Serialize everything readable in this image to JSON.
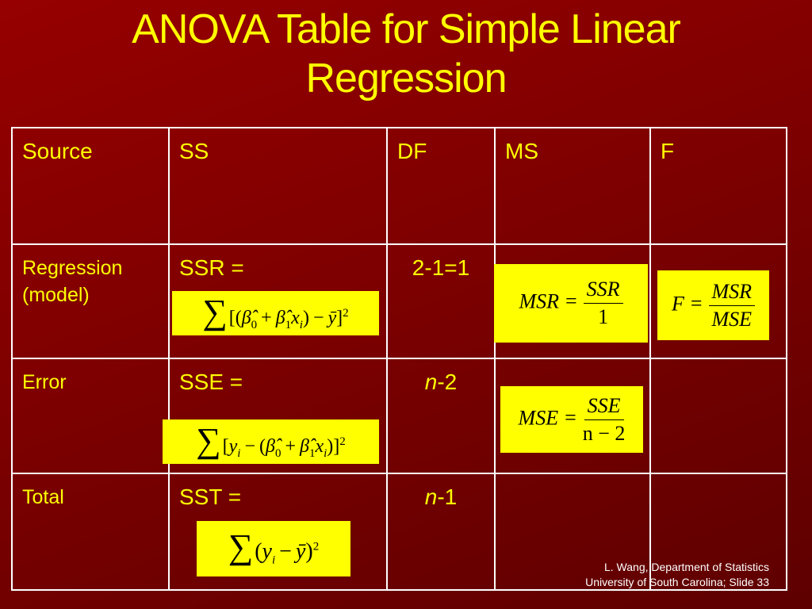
{
  "title": "ANOVA Table for Simple Linear Regression",
  "table": {
    "header": [
      "Source",
      "SS",
      "DF",
      "MS",
      "F"
    ],
    "rows": [
      {
        "source": "Regression (model)",
        "ss": "SSR =",
        "ss_formula": [
          "∑",
          "[(",
          "β̂",
          "0",
          "+",
          "β̂",
          "1",
          "x",
          "i",
          ")",
          "−",
          "ȳ",
          "]",
          "2"
        ],
        "df": [
          "2-1=1"
        ],
        "ms_formula": {
          "lhs": "MSR",
          "eq": "=",
          "num": "SSR",
          "den": "1"
        },
        "f_formula": {
          "lhs": "F",
          "eq": "=",
          "num": "MSR",
          "den": "MSE"
        }
      },
      {
        "source": "Error",
        "ss": "SSE =",
        "ss_formula": [
          "∑",
          "[",
          "y",
          "i",
          "−",
          "(",
          "β̂",
          "0",
          "+",
          "β̂",
          "1",
          "x",
          "i",
          ")]",
          "2"
        ],
        "df": [
          "n",
          "-2"
        ],
        "ms_formula": {
          "lhs": "MSE",
          "eq": "=",
          "num": "SSE",
          "den": "n − 2"
        }
      },
      {
        "source": "Total",
        "ss": "SST =",
        "ss_formula": [
          "∑",
          "(",
          "y",
          "i",
          "−",
          "ȳ",
          ")",
          "2"
        ],
        "df": [
          "n",
          "-1"
        ]
      }
    ]
  },
  "footer": [
    "L. Wang, Department of Statistics",
    "University of South Carolina; Slide 33"
  ]
}
